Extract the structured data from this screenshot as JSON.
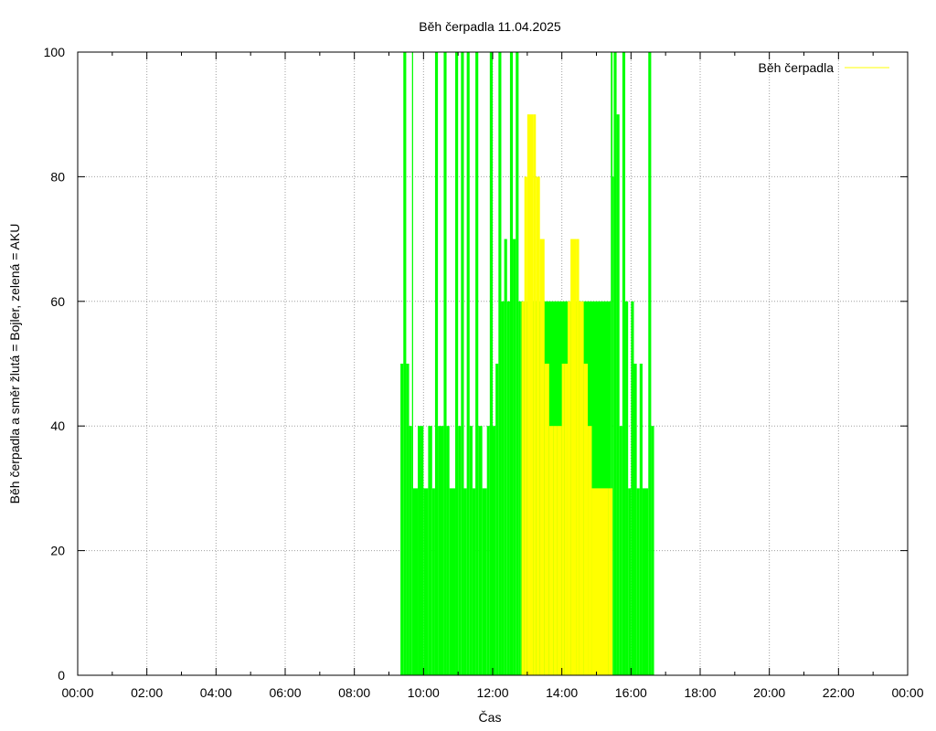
{
  "chart_data": {
    "type": "area",
    "title": "Běh čerpadla 11.04.2025",
    "xlabel": "Čas",
    "ylabel": "Běh čerpadla a směr žlutá = Bojler, zelená = AKU",
    "xlim": [
      "00:00",
      "24:00"
    ],
    "ylim": [
      0,
      100
    ],
    "x_ticks": [
      "00:00",
      "02:00",
      "04:00",
      "06:00",
      "08:00",
      "10:00",
      "12:00",
      "14:00",
      "16:00",
      "18:00",
      "20:00",
      "22:00",
      "00:00"
    ],
    "y_ticks": [
      "0",
      "20",
      "40",
      "60",
      "80",
      "100"
    ],
    "grid": true,
    "legend_position": "top-right",
    "colors": {
      "yellow": "#ffff00",
      "green": "#00ff00",
      "grid": "#a0a0a0"
    },
    "series": [
      {
        "name": "Běh čerpadla",
        "color": "#ffff00",
        "points": [
          [
            "12:48",
            0
          ],
          [
            "12:50",
            60
          ],
          [
            "12:55",
            80
          ],
          [
            "13:00",
            90
          ],
          [
            "13:10",
            90
          ],
          [
            "13:15",
            80
          ],
          [
            "13:22",
            70
          ],
          [
            "13:30",
            50
          ],
          [
            "13:38",
            40
          ],
          [
            "13:45",
            40
          ],
          [
            "13:52",
            40
          ],
          [
            "14:00",
            50
          ],
          [
            "14:05",
            50
          ],
          [
            "14:10",
            60
          ],
          [
            "14:15",
            70
          ],
          [
            "14:25",
            70
          ],
          [
            "14:30",
            60
          ],
          [
            "14:38",
            50
          ],
          [
            "14:45",
            40
          ],
          [
            "14:52",
            30
          ],
          [
            "15:20",
            30
          ],
          [
            "15:28",
            0
          ]
        ]
      },
      {
        "color": "#00ff00",
        "points": [
          [
            "09:20",
            50
          ],
          [
            "09:25",
            100
          ],
          [
            "09:30",
            50
          ],
          [
            "09:35",
            40
          ],
          [
            "09:40",
            100
          ],
          [
            "09:42",
            30
          ],
          [
            "09:50",
            40
          ],
          [
            "10:00",
            30
          ],
          [
            "10:08",
            40
          ],
          [
            "10:15",
            30
          ],
          [
            "10:20",
            100
          ],
          [
            "10:25",
            40
          ],
          [
            "10:35",
            100
          ],
          [
            "10:40",
            40
          ],
          [
            "10:45",
            30
          ],
          [
            "10:55",
            100
          ],
          [
            "11:00",
            40
          ],
          [
            "11:05",
            100
          ],
          [
            "11:10",
            30
          ],
          [
            "11:15",
            100
          ],
          [
            "11:20",
            40
          ],
          [
            "11:25",
            30
          ],
          [
            "11:30",
            100
          ],
          [
            "11:35",
            40
          ],
          [
            "11:42",
            30
          ],
          [
            "11:50",
            40
          ],
          [
            "11:55",
            100
          ],
          [
            "12:00",
            40
          ],
          [
            "12:05",
            50
          ],
          [
            "12:10",
            100
          ],
          [
            "12:15",
            60
          ],
          [
            "12:20",
            70
          ],
          [
            "12:25",
            60
          ],
          [
            "12:30",
            100
          ],
          [
            "12:35",
            70
          ],
          [
            "12:40",
            100
          ],
          [
            "12:45",
            60
          ],
          [
            "12:48",
            60
          ],
          [
            "15:25",
            100
          ],
          [
            "15:28",
            80
          ],
          [
            "15:30",
            100
          ],
          [
            "15:35",
            90
          ],
          [
            "15:40",
            40
          ],
          [
            "15:45",
            100
          ],
          [
            "15:50",
            60
          ],
          [
            "15:55",
            30
          ],
          [
            "16:00",
            60
          ],
          [
            "16:05",
            50
          ],
          [
            "16:10",
            30
          ],
          [
            "16:15",
            50
          ],
          [
            "16:20",
            30
          ],
          [
            "16:30",
            100
          ],
          [
            "16:35",
            40
          ],
          [
            "16:40",
            0
          ]
        ]
      }
    ]
  }
}
